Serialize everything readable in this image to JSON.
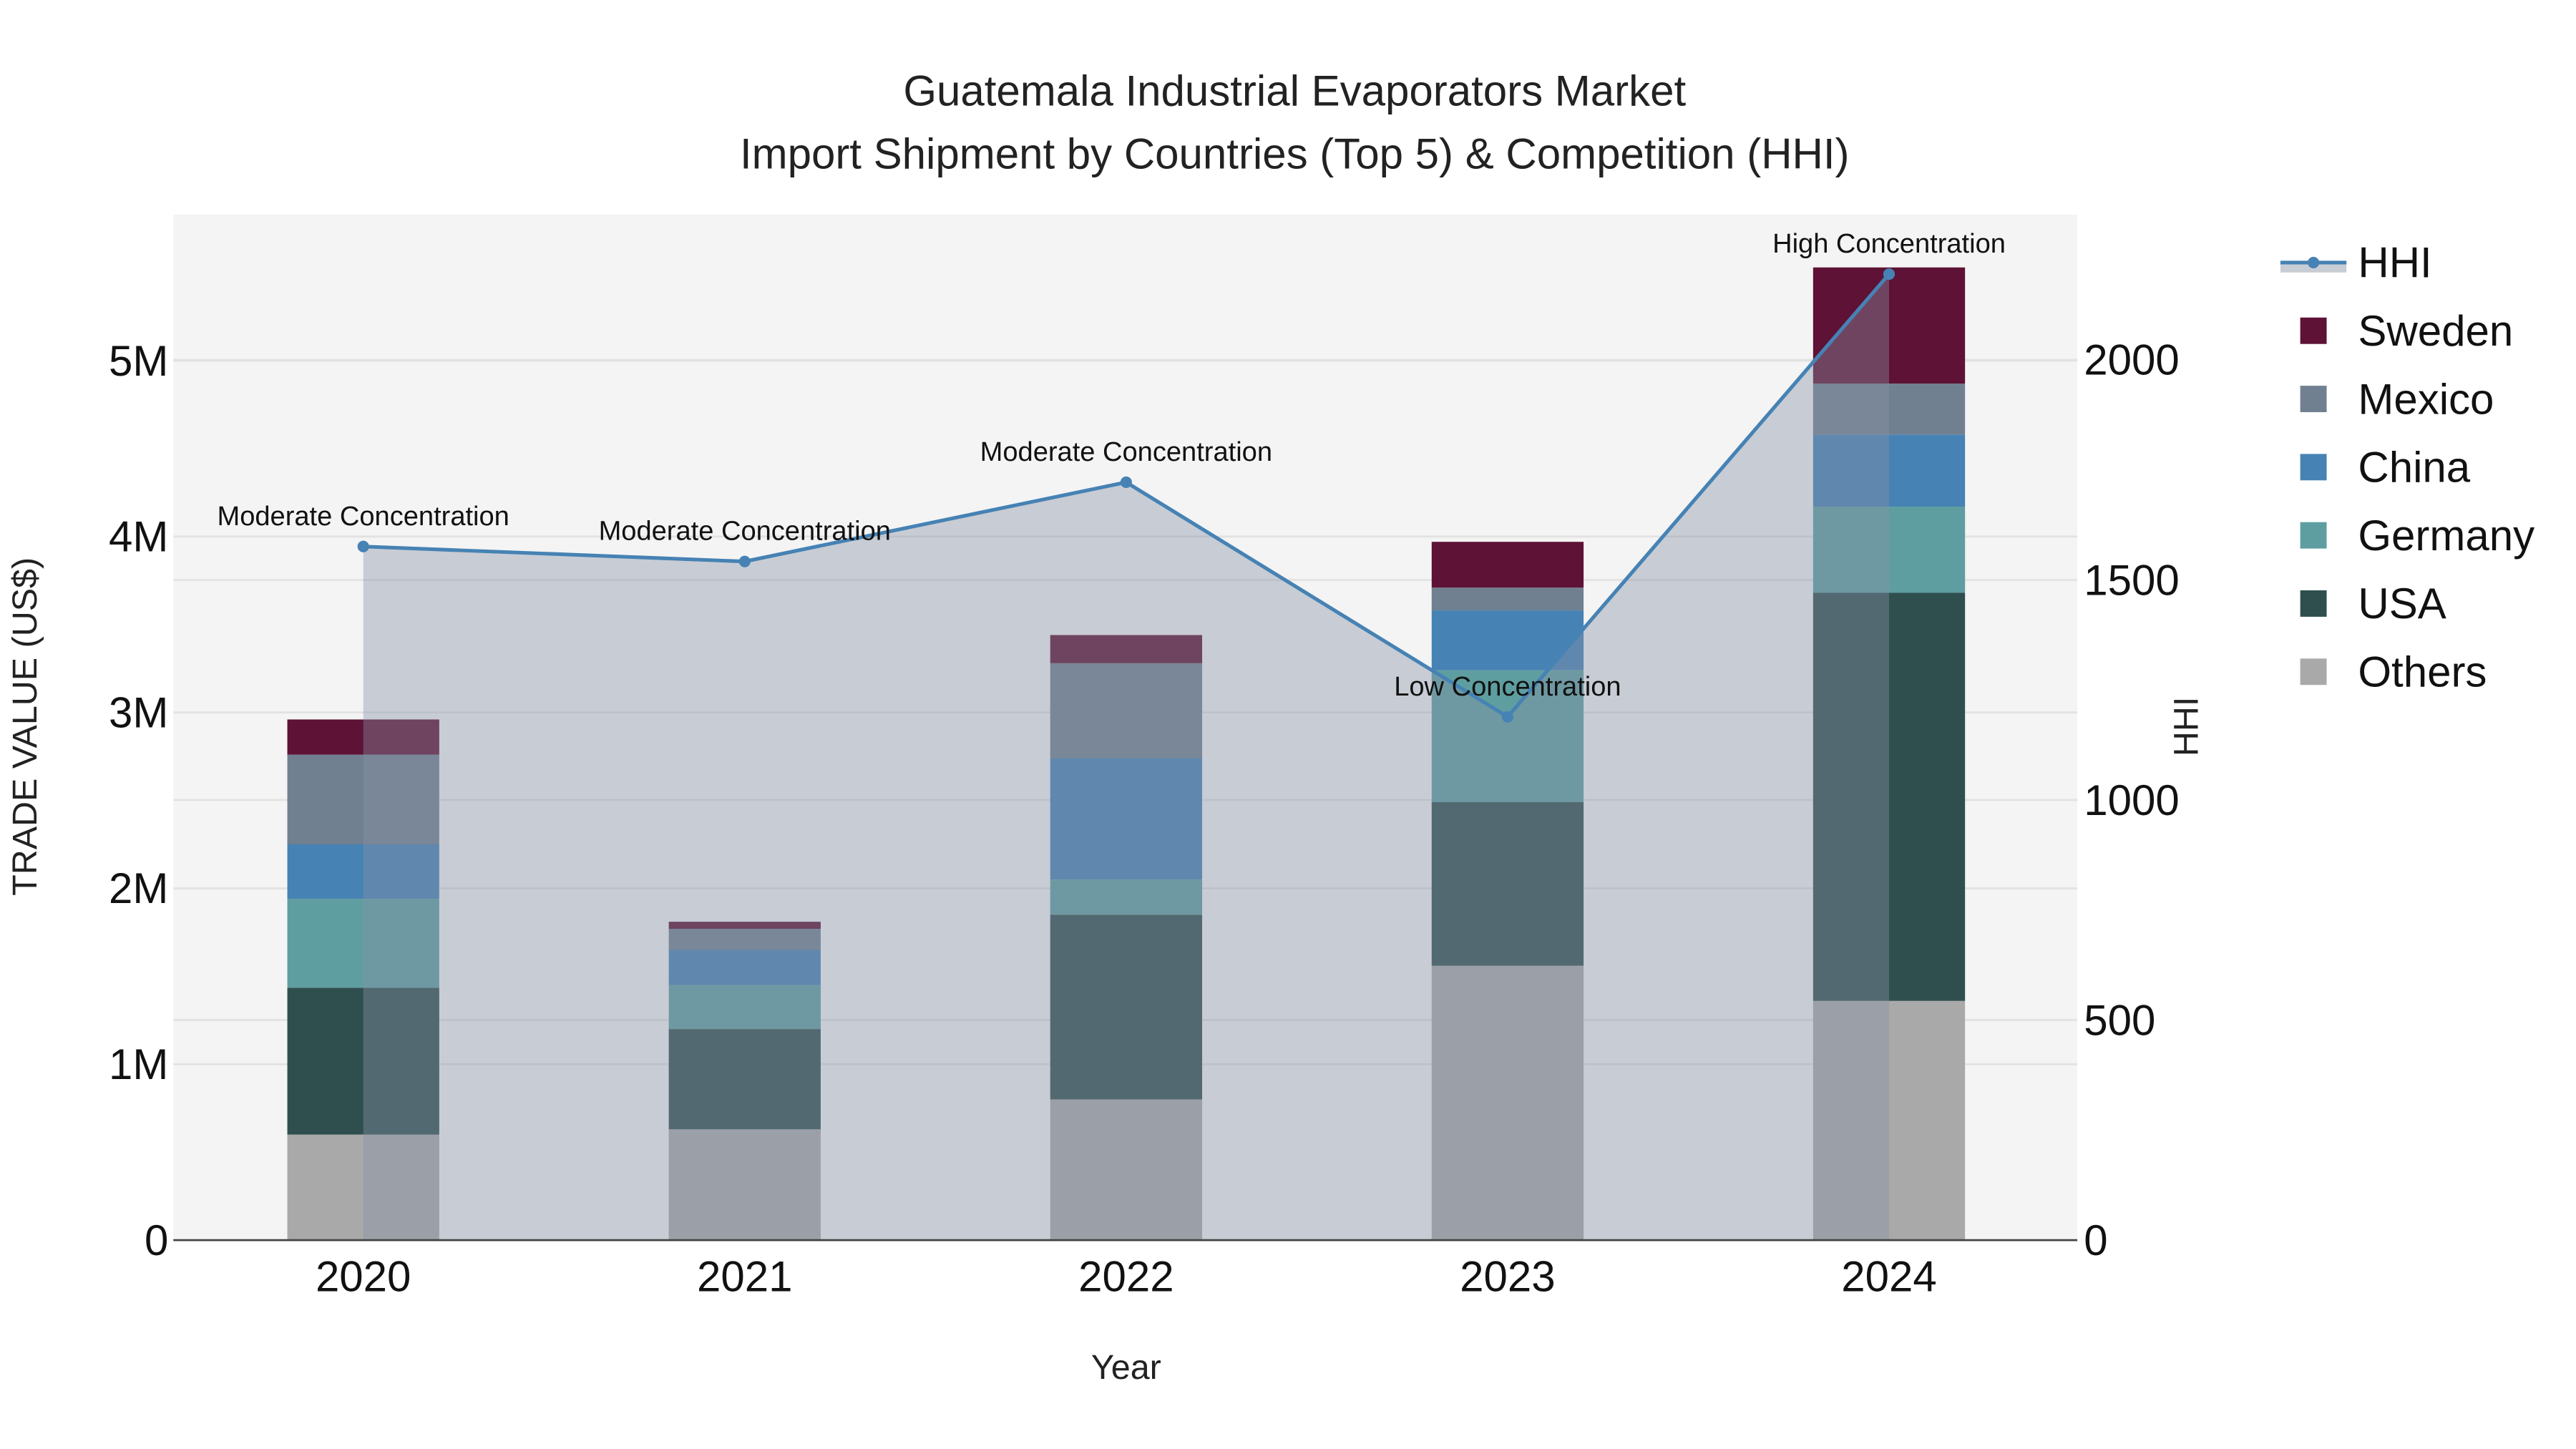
{
  "chart_data": {
    "type": "bar",
    "title_line1": "Guatemala Industrial Evaporators Market",
    "title_line2": "Import Shipment by Countries (Top 5) & Competition (HHI)",
    "xlabel": "Year",
    "ylabel": "TRADE VALUE (US$)",
    "y2label": "HHI",
    "categories": [
      "2020",
      "2021",
      "2022",
      "2023",
      "2024"
    ],
    "ylim": [
      0,
      5830000
    ],
    "y2lim": [
      0,
      2330
    ],
    "yticks": [
      {
        "v": 0,
        "label": "0"
      },
      {
        "v": 1000000,
        "label": "1M"
      },
      {
        "v": 2000000,
        "label": "2M"
      },
      {
        "v": 3000000,
        "label": "3M"
      },
      {
        "v": 4000000,
        "label": "4M"
      },
      {
        "v": 5000000,
        "label": "5M"
      }
    ],
    "y2ticks": [
      {
        "v": 0,
        "label": "0"
      },
      {
        "v": 500,
        "label": "500"
      },
      {
        "v": 1000,
        "label": "1000"
      },
      {
        "v": 1500,
        "label": "1500"
      },
      {
        "v": 2000,
        "label": "2000"
      }
    ],
    "series": [
      {
        "name": "Others",
        "color": "#a9a9a9",
        "values": [
          600000,
          630000,
          800000,
          1560000,
          1360000
        ]
      },
      {
        "name": "USA",
        "color": "#2f4f4f",
        "values": [
          835000,
          570000,
          1050000,
          930000,
          2320000
        ]
      },
      {
        "name": "Germany",
        "color": "#5f9ea0",
        "values": [
          505000,
          250000,
          200000,
          750000,
          490000
        ]
      },
      {
        "name": "China",
        "color": "#4682b4",
        "values": [
          310000,
          200000,
          690000,
          340000,
          410000
        ]
      },
      {
        "name": "Mexico",
        "color": "#708090",
        "values": [
          510000,
          120000,
          540000,
          130000,
          290000
        ]
      },
      {
        "name": "Sweden",
        "color": "#5e1235",
        "values": [
          200000,
          40000,
          160000,
          260000,
          660000
        ]
      }
    ],
    "hhi": {
      "name": "HHI",
      "color": "#4682b4",
      "values": [
        1576,
        1542,
        1722,
        1189,
        2195
      ],
      "annotations": [
        "Moderate Concentration",
        "Moderate Concentration",
        "Moderate Concentration",
        "Low Concentration",
        "High Concentration"
      ]
    },
    "legend": [
      "HHI",
      "Sweden",
      "Mexico",
      "China",
      "Germany",
      "USA",
      "Others"
    ],
    "legend_position": "right",
    "grid": true
  }
}
